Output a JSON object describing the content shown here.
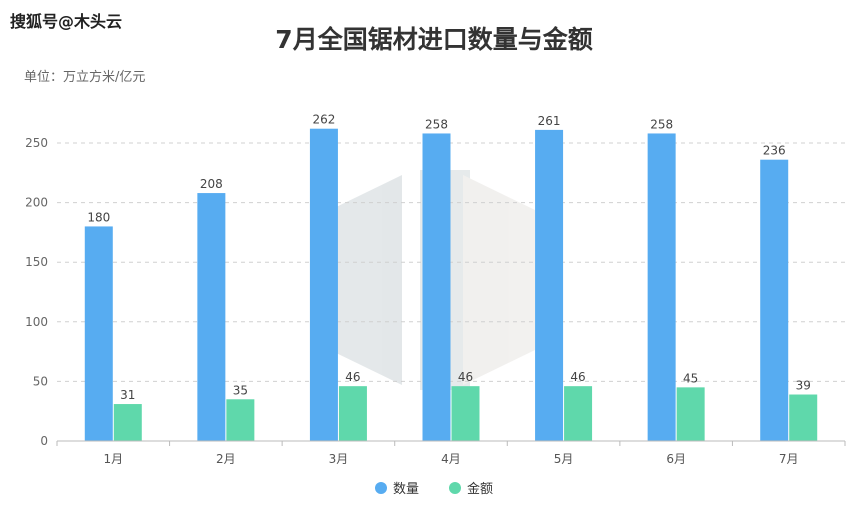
{
  "watermark": "搜狐号@木头云",
  "chart_data": {
    "type": "bar",
    "title": "7月全国锯材进口数量与金额",
    "unit_label": "单位：万立方米/亿元",
    "categories": [
      "1月",
      "2月",
      "3月",
      "4月",
      "5月",
      "6月",
      "7月"
    ],
    "series": [
      {
        "name": "数量",
        "color": "#57acf1",
        "values": [
          180,
          208,
          262,
          258,
          261,
          258,
          236
        ]
      },
      {
        "name": "金额",
        "color": "#5fd8ab",
        "values": [
          31,
          35,
          46,
          46,
          46,
          45,
          39
        ]
      }
    ],
    "ylim": [
      0,
      250
    ],
    "yticks": [
      0,
      50,
      100,
      150,
      200,
      250
    ],
    "grid": true,
    "legend_position": "bottom-center"
  }
}
